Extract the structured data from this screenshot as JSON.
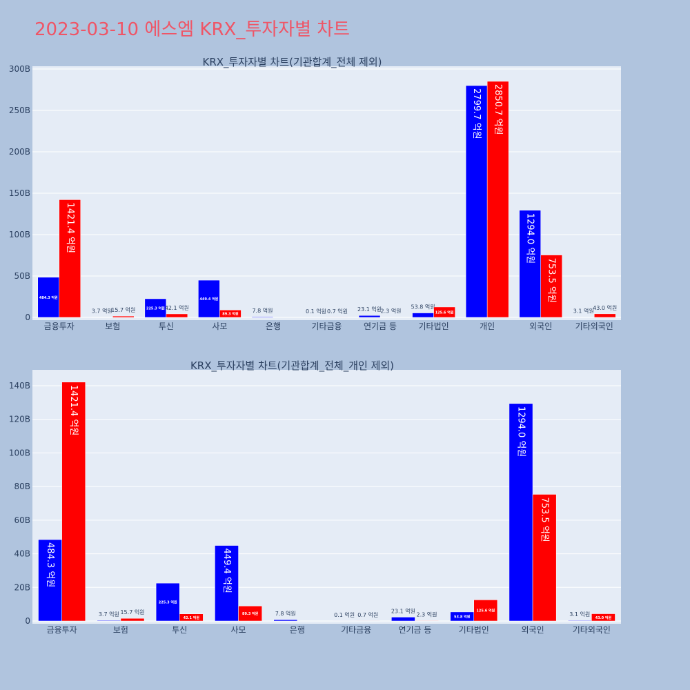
{
  "page_title": "2023-03-10 에스엠 KRX_투자자별 차트",
  "colors": {
    "buy": "#0000ff",
    "sell": "#ff0000",
    "plot_bg": "#e5ecf6",
    "page_bg": "#b0c4de"
  },
  "chart_data": [
    {
      "type": "bar",
      "title": "KRX_투자자별 차트(기관합계_전체 제외)",
      "categories": [
        "금융투자",
        "보험",
        "투신",
        "사모",
        "은행",
        "기타금융",
        "연기금 등",
        "기타법인",
        "개인",
        "외국인",
        "기타외국인"
      ],
      "series": [
        {
          "color": "#0000ff",
          "values": [
            48.43,
            0.37,
            22.53,
            44.94,
            0.78,
            0.01,
            2.31,
            5.38,
            279.97,
            129.4,
            0.31
          ],
          "labels": [
            "484.3 억원",
            "3.7 억원",
            "225.3 억원",
            "449.4 억원",
            "7.8 억원",
            "0.1 억원",
            "23.1 억원",
            "53.8 억원",
            "2799.7 억원",
            "1294.0 억원",
            "3.1 억원"
          ]
        },
        {
          "color": "#ff0000",
          "values": [
            142.14,
            1.57,
            4.21,
            8.93,
            0,
            0.07,
            0.23,
            12.56,
            285.07,
            75.35,
            4.3
          ],
          "labels": [
            "1421.4 억원",
            "15.7 억원",
            "42.1 억원",
            "89.3 억원",
            "",
            "0.7 억원",
            "2.3 억원",
            "125.6 억원",
            "2850.7 억원",
            "753.5 억원",
            "43.0 억원"
          ]
        }
      ],
      "ylim": [
        0,
        300
      ],
      "yticks": [
        0,
        50,
        100,
        150,
        200,
        250,
        300
      ],
      "ytick_labels": [
        "0",
        "50B",
        "100B",
        "150B",
        "200B",
        "250B",
        "300B"
      ],
      "grid": true
    },
    {
      "type": "bar",
      "title": "KRX_투자자별 차트(기관합계_전체_개인 제외)",
      "categories": [
        "금융투자",
        "보험",
        "투신",
        "사모",
        "은행",
        "기타금융",
        "연기금 등",
        "기타법인",
        "외국인",
        "기타외국인"
      ],
      "series": [
        {
          "color": "#0000ff",
          "values": [
            48.43,
            0.37,
            22.53,
            44.94,
            0.78,
            0.01,
            2.31,
            5.38,
            129.4,
            0.31
          ],
          "labels": [
            "484.3 억원",
            "3.7 억원",
            "225.3 억원",
            "449.4 억원",
            "7.8 억원",
            "0.1 억원",
            "23.1 억원",
            "53.8 억원",
            "1294.0 억원",
            "3.1 억원"
          ]
        },
        {
          "color": "#ff0000",
          "values": [
            142.14,
            1.57,
            4.21,
            8.93,
            0,
            0.07,
            0.23,
            12.56,
            75.35,
            4.3
          ],
          "labels": [
            "1421.4 억원",
            "15.7 억원",
            "42.1 억원",
            "89.3 억원",
            "",
            "0.7 억원",
            "2.3 억원",
            "125.6 억원",
            "753.5 억원",
            "43.0 억원"
          ]
        }
      ],
      "ylim": [
        0,
        150
      ],
      "yticks": [
        0,
        20,
        40,
        60,
        80,
        100,
        120,
        140
      ],
      "ytick_labels": [
        "0",
        "20B",
        "40B",
        "60B",
        "80B",
        "100B",
        "120B",
        "140B"
      ],
      "grid": true
    }
  ]
}
